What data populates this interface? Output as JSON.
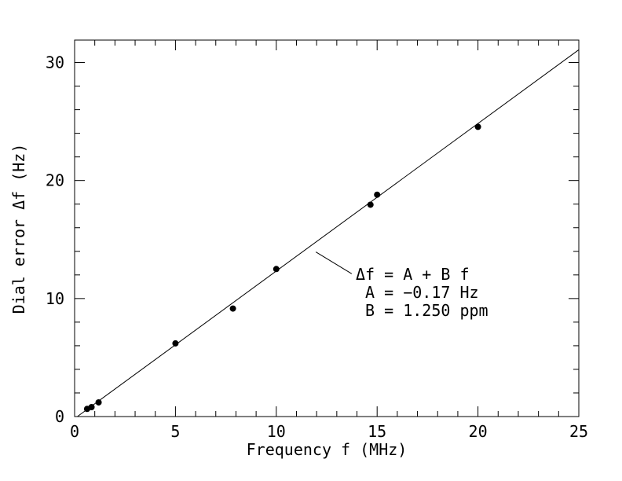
{
  "figure": {
    "background_color": "#ffffff",
    "ink_color": "#000000"
  },
  "chart_data": {
    "type": "scatter",
    "title": "",
    "xlabel": "Frequency f (MHz)",
    "ylabel": "Dial error Δf (Hz)",
    "xlim": [
      0,
      25
    ],
    "ylim": [
      0,
      31.9
    ],
    "grid": false,
    "x_major_ticks": [
      0,
      5,
      10,
      15,
      20,
      25
    ],
    "x_major_tick_labels": [
      "0",
      "5",
      "10",
      "15",
      "20",
      "25"
    ],
    "x_minor_step": 1,
    "y_major_ticks": [
      0,
      10,
      20,
      30
    ],
    "y_major_tick_labels": [
      "0",
      "10",
      "20",
      "30"
    ],
    "y_minor_step": 2,
    "points": [
      {
        "f": 0.62,
        "df": 0.65
      },
      {
        "f": 0.84,
        "df": 0.8
      },
      {
        "f": 1.19,
        "df": 1.2
      },
      {
        "f": 5.0,
        "df": 6.2
      },
      {
        "f": 7.85,
        "df": 9.15
      },
      {
        "f": 10.0,
        "df": 12.5
      },
      {
        "f": 14.67,
        "df": 17.95
      },
      {
        "f": 15.0,
        "df": 18.8
      },
      {
        "f": 20.0,
        "df": 24.55
      }
    ],
    "fit_line": {
      "A_hz": -0.17,
      "B_ppm": 1.25,
      "equation": "df = A + B*f"
    },
    "annotation": {
      "lines": [
        "Δf = A + B f",
        " A = −0.17 Hz",
        " B = 1.250 ppm"
      ],
      "pointer_from_data": [
        11.96,
        13.95
      ],
      "pointer_to_data": [
        13.74,
        12.1
      ]
    }
  }
}
